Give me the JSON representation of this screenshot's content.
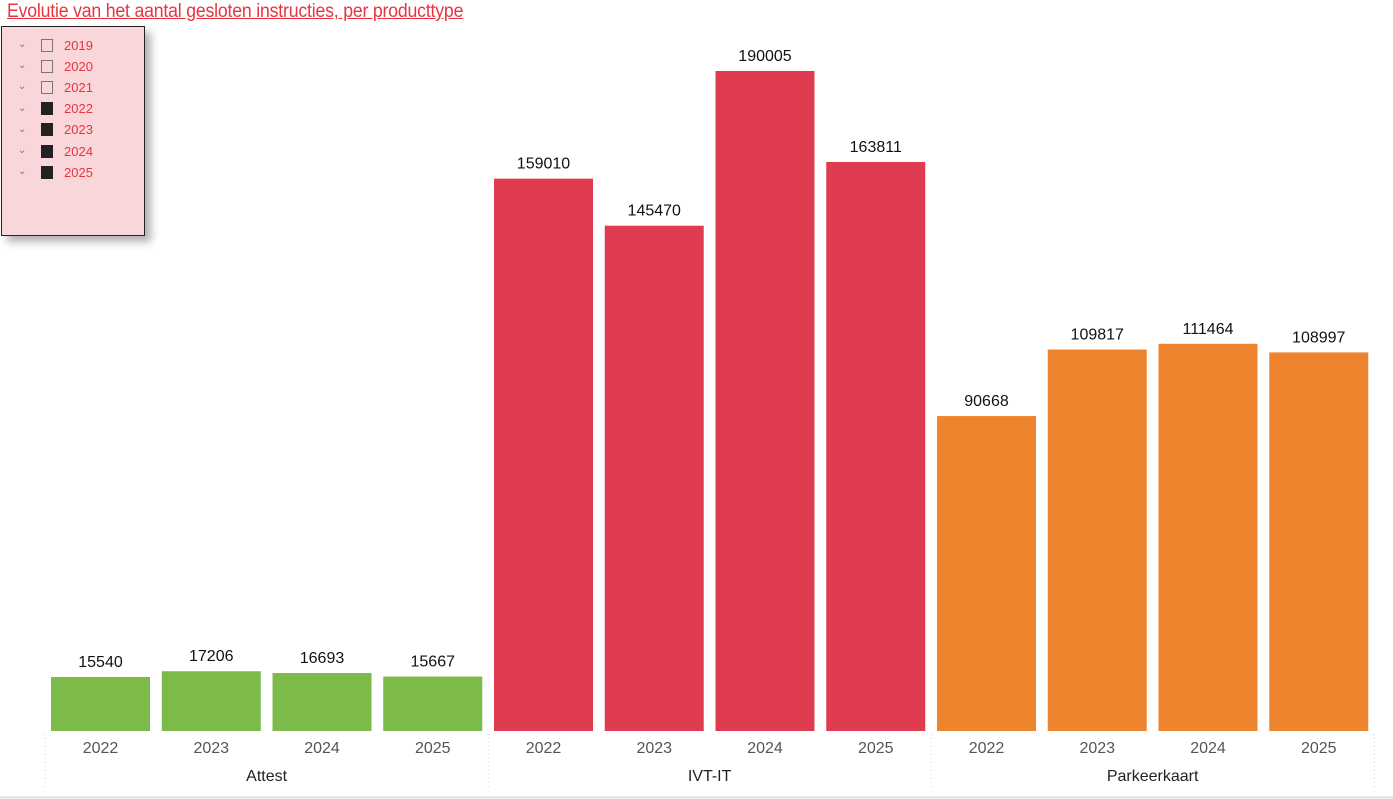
{
  "title": "Evolutie van het aantal gesloten instructies, per producttype",
  "slicer": {
    "items": [
      {
        "label": "2019",
        "checked": false
      },
      {
        "label": "2020",
        "checked": false
      },
      {
        "label": "2021",
        "checked": false
      },
      {
        "label": "2022",
        "checked": true
      },
      {
        "label": "2023",
        "checked": true
      },
      {
        "label": "2024",
        "checked": true
      },
      {
        "label": "2025",
        "checked": true
      }
    ]
  },
  "chart_data": {
    "type": "bar",
    "title": "Evolutie van het aantal gesloten instructies, per producttype",
    "xlabel": "",
    "ylabel": "",
    "ylim": [
      0,
      190005
    ],
    "grid": false,
    "groups": [
      {
        "name": "Attest",
        "color": "#7cba4a",
        "categories": [
          "2022",
          "2023",
          "2024",
          "2025"
        ],
        "values": [
          15540,
          17206,
          16693,
          15667
        ]
      },
      {
        "name": "IVT-IT",
        "color": "#e03c50",
        "categories": [
          "2022",
          "2023",
          "2024",
          "2025"
        ],
        "values": [
          159010,
          145470,
          190005,
          163811
        ]
      },
      {
        "name": "Parkeerkaart",
        "color": "#ee852e",
        "categories": [
          "2022",
          "2023",
          "2024",
          "2025"
        ],
        "values": [
          90668,
          109817,
          111464,
          108997
        ]
      }
    ]
  }
}
